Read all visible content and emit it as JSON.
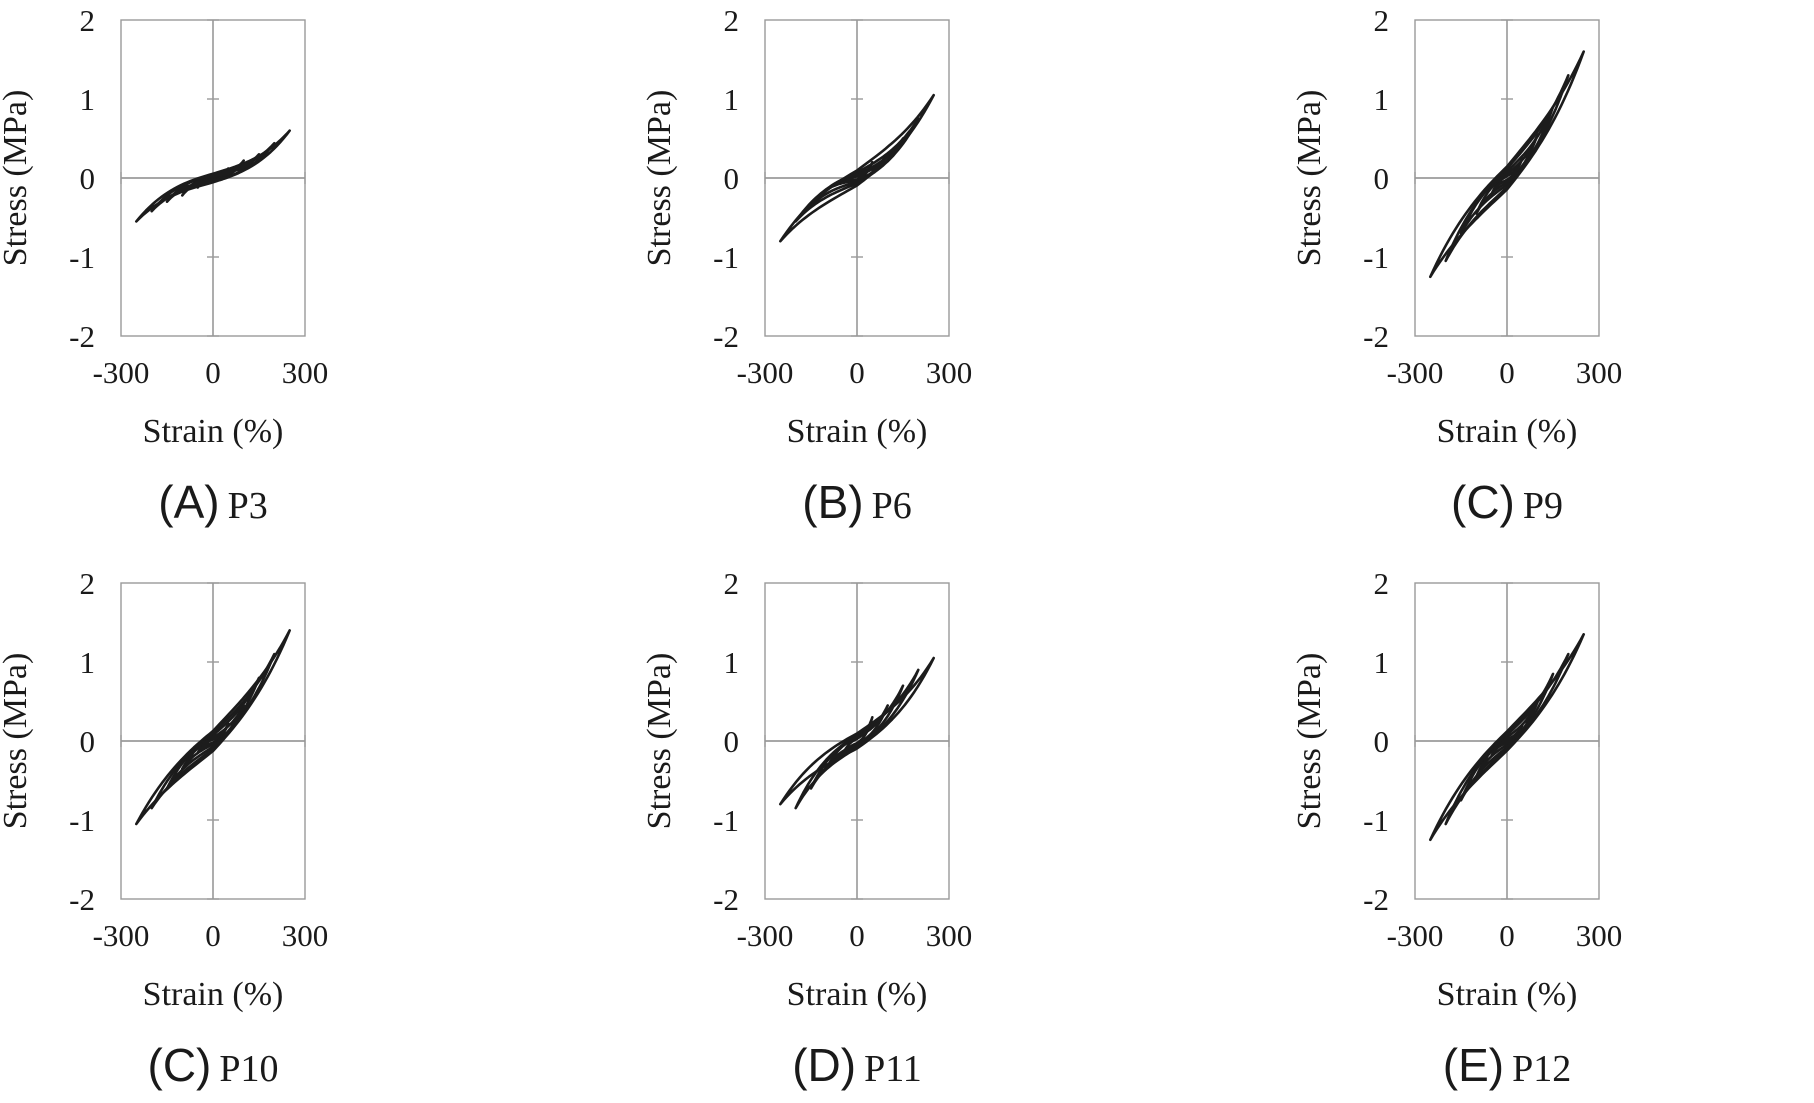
{
  "chart_data": [
    {
      "type": "line",
      "id": "P3",
      "caption_letter": "(A)",
      "caption_name": "P3",
      "xlabel": "Strain (%)",
      "ylabel": "Stress (MPa)",
      "xlim": [
        -300,
        300
      ],
      "ylim": [
        -2,
        2
      ],
      "xticks": [
        "-300",
        "0",
        "300"
      ],
      "yticks": [
        "2",
        "1",
        "0",
        "-1",
        "-2"
      ],
      "grid": false,
      "legend": "none",
      "loops": [
        {
          "amplitude": 50,
          "peak_stress": 0.12,
          "min_stress": -0.12,
          "secant": 0.2
        },
        {
          "amplitude": 100,
          "peak_stress": 0.22,
          "min_stress": -0.22,
          "secant": 0.3
        },
        {
          "amplitude": 150,
          "peak_stress": 0.3,
          "min_stress": -0.3,
          "secant": 0.35
        },
        {
          "amplitude": 200,
          "peak_stress": 0.44,
          "min_stress": -0.42,
          "secant": 0.45
        },
        {
          "amplitude": 250,
          "peak_stress": 0.6,
          "min_stress": -0.55,
          "secant": 0.5
        }
      ]
    },
    {
      "type": "line",
      "id": "P6",
      "caption_letter": "(B)",
      "caption_name": "P6",
      "xlabel": "Strain (%)",
      "ylabel": "Stress (MPa)",
      "xlim": [
        -300,
        300
      ],
      "ylim": [
        -2,
        2
      ],
      "xticks": [
        "-300",
        "0",
        "300"
      ],
      "yticks": [
        "2",
        "1",
        "0",
        "-1",
        "-2"
      ],
      "grid": false,
      "legend": "none",
      "loops": [
        {
          "amplitude": 50,
          "peak_stress": 0.2,
          "min_stress": -0.05,
          "secant": 0.4
        },
        {
          "amplitude": 100,
          "peak_stress": 0.3,
          "min_stress": -0.15,
          "secant": 0.5
        },
        {
          "amplitude": 150,
          "peak_stress": 0.5,
          "min_stress": -0.35,
          "secant": 0.55
        },
        {
          "amplitude": 200,
          "peak_stress": 0.75,
          "min_stress": -0.55,
          "secant": 0.6
        },
        {
          "amplitude": 250,
          "peak_stress": 1.05,
          "min_stress": -0.8,
          "secant": 0.7
        }
      ]
    },
    {
      "type": "line",
      "id": "P9",
      "caption_letter": "(C)",
      "caption_name": "P9",
      "xlabel": "Strain (%)",
      "ylabel": "Stress (MPa)",
      "xlim": [
        -300,
        300
      ],
      "ylim": [
        -2,
        2
      ],
      "xticks": [
        "-300",
        "0",
        "300"
      ],
      "yticks": [
        "2",
        "1",
        "0",
        "-1",
        "-2"
      ],
      "grid": false,
      "legend": "none",
      "loops": [
        {
          "amplitude": 50,
          "peak_stress": 0.25,
          "min_stress": -0.2,
          "secant": 0.5
        },
        {
          "amplitude": 100,
          "peak_stress": 0.55,
          "min_stress": -0.45,
          "secant": 0.6
        },
        {
          "amplitude": 150,
          "peak_stress": 0.9,
          "min_stress": -0.7,
          "secant": 0.65
        },
        {
          "amplitude": 200,
          "peak_stress": 1.3,
          "min_stress": -1.05,
          "secant": 0.7
        },
        {
          "amplitude": 250,
          "peak_stress": 1.6,
          "min_stress": -1.25,
          "secant": 0.75
        }
      ]
    },
    {
      "type": "line",
      "id": "P10",
      "caption_letter": "(C)",
      "caption_name": "P10",
      "xlabel": "Strain (%)",
      "ylabel": "Stress (MPa)",
      "xlim": [
        -300,
        300
      ],
      "ylim": [
        -2,
        2
      ],
      "xticks": [
        "-300",
        "0",
        "300"
      ],
      "yticks": [
        "2",
        "1",
        "0",
        "-1",
        "-2"
      ],
      "grid": false,
      "legend": "none",
      "loops": [
        {
          "amplitude": 50,
          "peak_stress": 0.22,
          "min_stress": -0.15,
          "secant": 0.5
        },
        {
          "amplitude": 100,
          "peak_stress": 0.45,
          "min_stress": -0.35,
          "secant": 0.6
        },
        {
          "amplitude": 150,
          "peak_stress": 0.8,
          "min_stress": -0.6,
          "secant": 0.65
        },
        {
          "amplitude": 200,
          "peak_stress": 1.1,
          "min_stress": -0.85,
          "secant": 0.7
        },
        {
          "amplitude": 250,
          "peak_stress": 1.4,
          "min_stress": -1.05,
          "secant": 0.75
        }
      ]
    },
    {
      "type": "line",
      "id": "P11",
      "caption_letter": "(D)",
      "caption_name": "P11",
      "xlabel": "Strain (%)",
      "ylabel": "Stress (MPa)",
      "xlim": [
        -300,
        300
      ],
      "ylim": [
        -2,
        2
      ],
      "xticks": [
        "-300",
        "0",
        "300"
      ],
      "yticks": [
        "2",
        "1",
        "0",
        "-1",
        "-2"
      ],
      "grid": false,
      "legend": "none",
      "loops": [
        {
          "amplitude": 50,
          "peak_stress": 0.3,
          "min_stress": -0.2,
          "secant": 0.45
        },
        {
          "amplitude": 100,
          "peak_stress": 0.45,
          "min_stress": -0.35,
          "secant": 0.5
        },
        {
          "amplitude": 150,
          "peak_stress": 0.7,
          "min_stress": -0.6,
          "secant": 0.55
        },
        {
          "amplitude": 200,
          "peak_stress": 0.9,
          "min_stress": -0.85,
          "secant": 0.6
        },
        {
          "amplitude": 250,
          "peak_stress": 1.05,
          "min_stress": -0.8,
          "secant": 0.65
        }
      ]
    },
    {
      "type": "line",
      "id": "P12",
      "caption_letter": "(E)",
      "caption_name": "P12",
      "xlabel": "Strain (%)",
      "ylabel": "Stress (MPa)",
      "xlim": [
        -300,
        300
      ],
      "ylim": [
        -2,
        2
      ],
      "xticks": [
        "-300",
        "0",
        "300"
      ],
      "yticks": [
        "2",
        "1",
        "0",
        "-1",
        "-2"
      ],
      "grid": false,
      "legend": "none",
      "loops": [
        {
          "amplitude": 50,
          "peak_stress": 0.2,
          "min_stress": -0.18,
          "secant": 0.5
        },
        {
          "amplitude": 100,
          "peak_stress": 0.5,
          "min_stress": -0.45,
          "secant": 0.6
        },
        {
          "amplitude": 150,
          "peak_stress": 0.85,
          "min_stress": -0.75,
          "secant": 0.65
        },
        {
          "amplitude": 200,
          "peak_stress": 1.1,
          "min_stress": -1.05,
          "secant": 0.7
        },
        {
          "amplitude": 250,
          "peak_stress": 1.35,
          "min_stress": -1.25,
          "secant": 0.75
        }
      ]
    }
  ]
}
